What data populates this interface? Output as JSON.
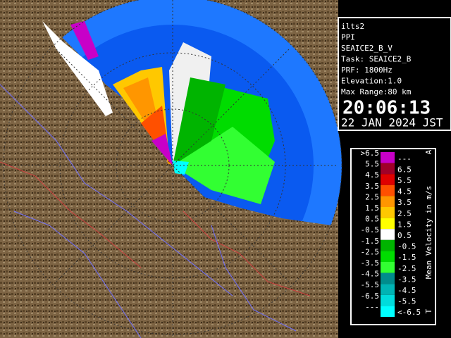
{
  "info": {
    "lines": [
      "ilts2",
      "PPI",
      "SEAICE2_B_V",
      "Task: SEAICE2_B",
      "PRF: 1800Hz",
      "Elevation:1.0",
      "Max Range:80 km"
    ],
    "time": "20:06:13",
    "date": "22 JAN 2024 JST"
  },
  "legend": {
    "title": "Mean Velocity in m/s",
    "top_mark": "A",
    "bottom_mark": "T",
    "rows": [
      {
        "color": "#c800c8",
        "left": ">6.5",
        "right": "---"
      },
      {
        "color": "#a00028",
        "left": "5.5",
        "right": "6.5"
      },
      {
        "color": "#e00000",
        "left": "4.5",
        "right": "5.5"
      },
      {
        "color": "#ff5000",
        "left": "3.5",
        "right": "4.5"
      },
      {
        "color": "#ff9600",
        "left": "2.5",
        "right": "3.5"
      },
      {
        "color": "#ffc800",
        "left": "1.5",
        "right": "2.5"
      },
      {
        "color": "#ffff00",
        "left": "0.5",
        "right": "1.5"
      },
      {
        "color": "#ffffff",
        "left": "-0.5",
        "right": "0.5"
      },
      {
        "color": "#00b400",
        "left": "-1.5",
        "right": "-0.5"
      },
      {
        "color": "#00dc00",
        "left": "-2.5",
        "right": "-1.5"
      },
      {
        "color": "#32ff32",
        "left": "-3.5",
        "right": "-2.5"
      },
      {
        "color": "#008c8c",
        "left": "-4.5",
        "right": "-3.5"
      },
      {
        "color": "#00b4b4",
        "left": "-5.5",
        "right": "-4.5"
      },
      {
        "color": "#00dcdc",
        "left": "-6.5",
        "right": "-5.5"
      },
      {
        "color": "#00ffff",
        "left": "---",
        "right": "<-6.5"
      }
    ]
  }
}
